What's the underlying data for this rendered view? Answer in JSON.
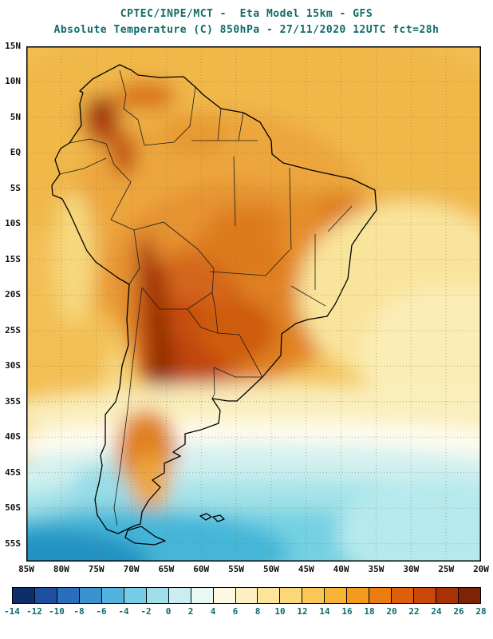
{
  "header": {
    "line1": "CPTEC/INPE/MCT -  Eta Model 15km - GFS",
    "line2": "Absolute Temperature (C) 850hPa - 27/11/2020 12UTC fct=28h"
  },
  "axes": {
    "lat_labels": [
      "15N",
      "10N",
      "5N",
      "EQ",
      "5S",
      "10S",
      "15S",
      "20S",
      "25S",
      "30S",
      "35S",
      "40S",
      "45S",
      "50S",
      "55S"
    ],
    "lon_labels": [
      "85W",
      "80W",
      "75W",
      "70W",
      "65W",
      "60W",
      "55W",
      "50W",
      "45W",
      "40W",
      "35W",
      "30W",
      "25W",
      "20W"
    ]
  },
  "colorbar": {
    "tick_labels": [
      "-14",
      "-12",
      "-10",
      "-8",
      "-6",
      "-4",
      "-2",
      "0",
      "2",
      "4",
      "6",
      "8",
      "10",
      "12",
      "14",
      "16",
      "18",
      "20",
      "22",
      "24",
      "26",
      "28"
    ],
    "cell_colors": [
      "#0d2d6b",
      "#1d4f9e",
      "#2a6fbe",
      "#3a93cf",
      "#52b4dc",
      "#74cde4",
      "#9fdfea",
      "#c8eef2",
      "#e8f8f5",
      "#fdf8e0",
      "#fdf0c0",
      "#fce49a",
      "#fbd777",
      "#f9c753",
      "#f7b434",
      "#f29b1f",
      "#ea7c12",
      "#dd5f0b",
      "#c94708",
      "#a83205",
      "#7e2304"
    ]
  },
  "colors": {
    "title_text": "#0f6b6b",
    "axis_text": "#111111",
    "tick_text": "#0f6b6b",
    "map_base": "#f2bf55"
  }
}
